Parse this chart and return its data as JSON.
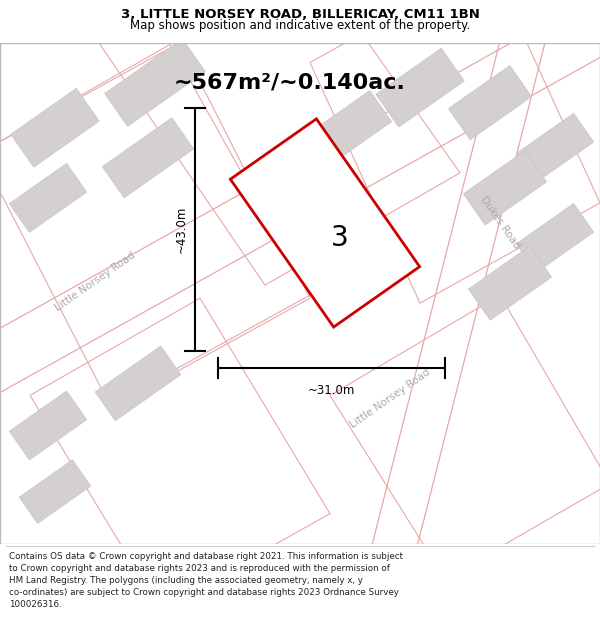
{
  "title_line1": "3, LITTLE NORSEY ROAD, BILLERICAY, CM11 1BN",
  "title_line2": "Map shows position and indicative extent of the property.",
  "area_text": "~567m²/~0.140ac.",
  "dimension_width": "~31.0m",
  "dimension_height": "~43.0m",
  "plot_number": "3",
  "map_bg_color": "#f2f0f0",
  "road_line_color": "#e8a8a8",
  "building_fill": "#d4d0d0",
  "building_edge": "#c8c4c4",
  "plot_edge_color": "#cc0000",
  "plot_fill_color": "#ffffff",
  "footer_text": "Contains OS data © Crown copyright and database right 2021. This information is subject to Crown copyright and database rights 2023 and is reproduced with the permission of HM Land Registry. The polygons (including the associated geometry, namely x, y co-ordinates) are subject to Crown copyright and database rights 2023 Ordnance Survey 100026316.",
  "road_label_left": "Little Norsey Road",
  "road_label_right": "Dukes Road",
  "road_label_bottom": "Little Norsey Road",
  "title_fontsize": 9.5,
  "subtitle_fontsize": 8.5,
  "area_fontsize": 16,
  "dim_fontsize": 8.5,
  "road_label_fontsize": 7.5,
  "plot_num_fontsize": 20
}
